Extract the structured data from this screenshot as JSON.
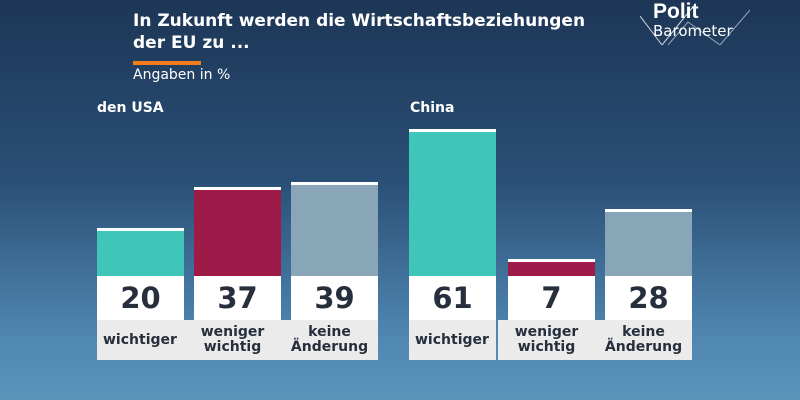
{
  "title_line1": "In Zukunft werden die Wirtschaftsbeziehungen",
  "title_line2": "der EU zu ...",
  "subtitle": "Angaben in %",
  "logo": {
    "line1": "Polit",
    "line2": "Barometer"
  },
  "colors": {
    "wichtiger": "#3fc6b8",
    "weniger wichtig": "#9e1a48",
    "keine Änderung": "#89a5b8",
    "accent": "#f07d1a"
  },
  "chart_data": [
    {
      "type": "bar",
      "title": "den USA",
      "categories": [
        "wichtiger",
        "weniger\nwichtig",
        "keine\nÄnderung"
      ],
      "values": [
        20,
        37,
        39
      ],
      "unit": "%"
    },
    {
      "type": "bar",
      "title": "China",
      "categories": [
        "wichtiger",
        "weniger\nwichtig",
        "keine\nÄnderung"
      ],
      "values": [
        61,
        7,
        28
      ],
      "unit": "%"
    }
  ]
}
